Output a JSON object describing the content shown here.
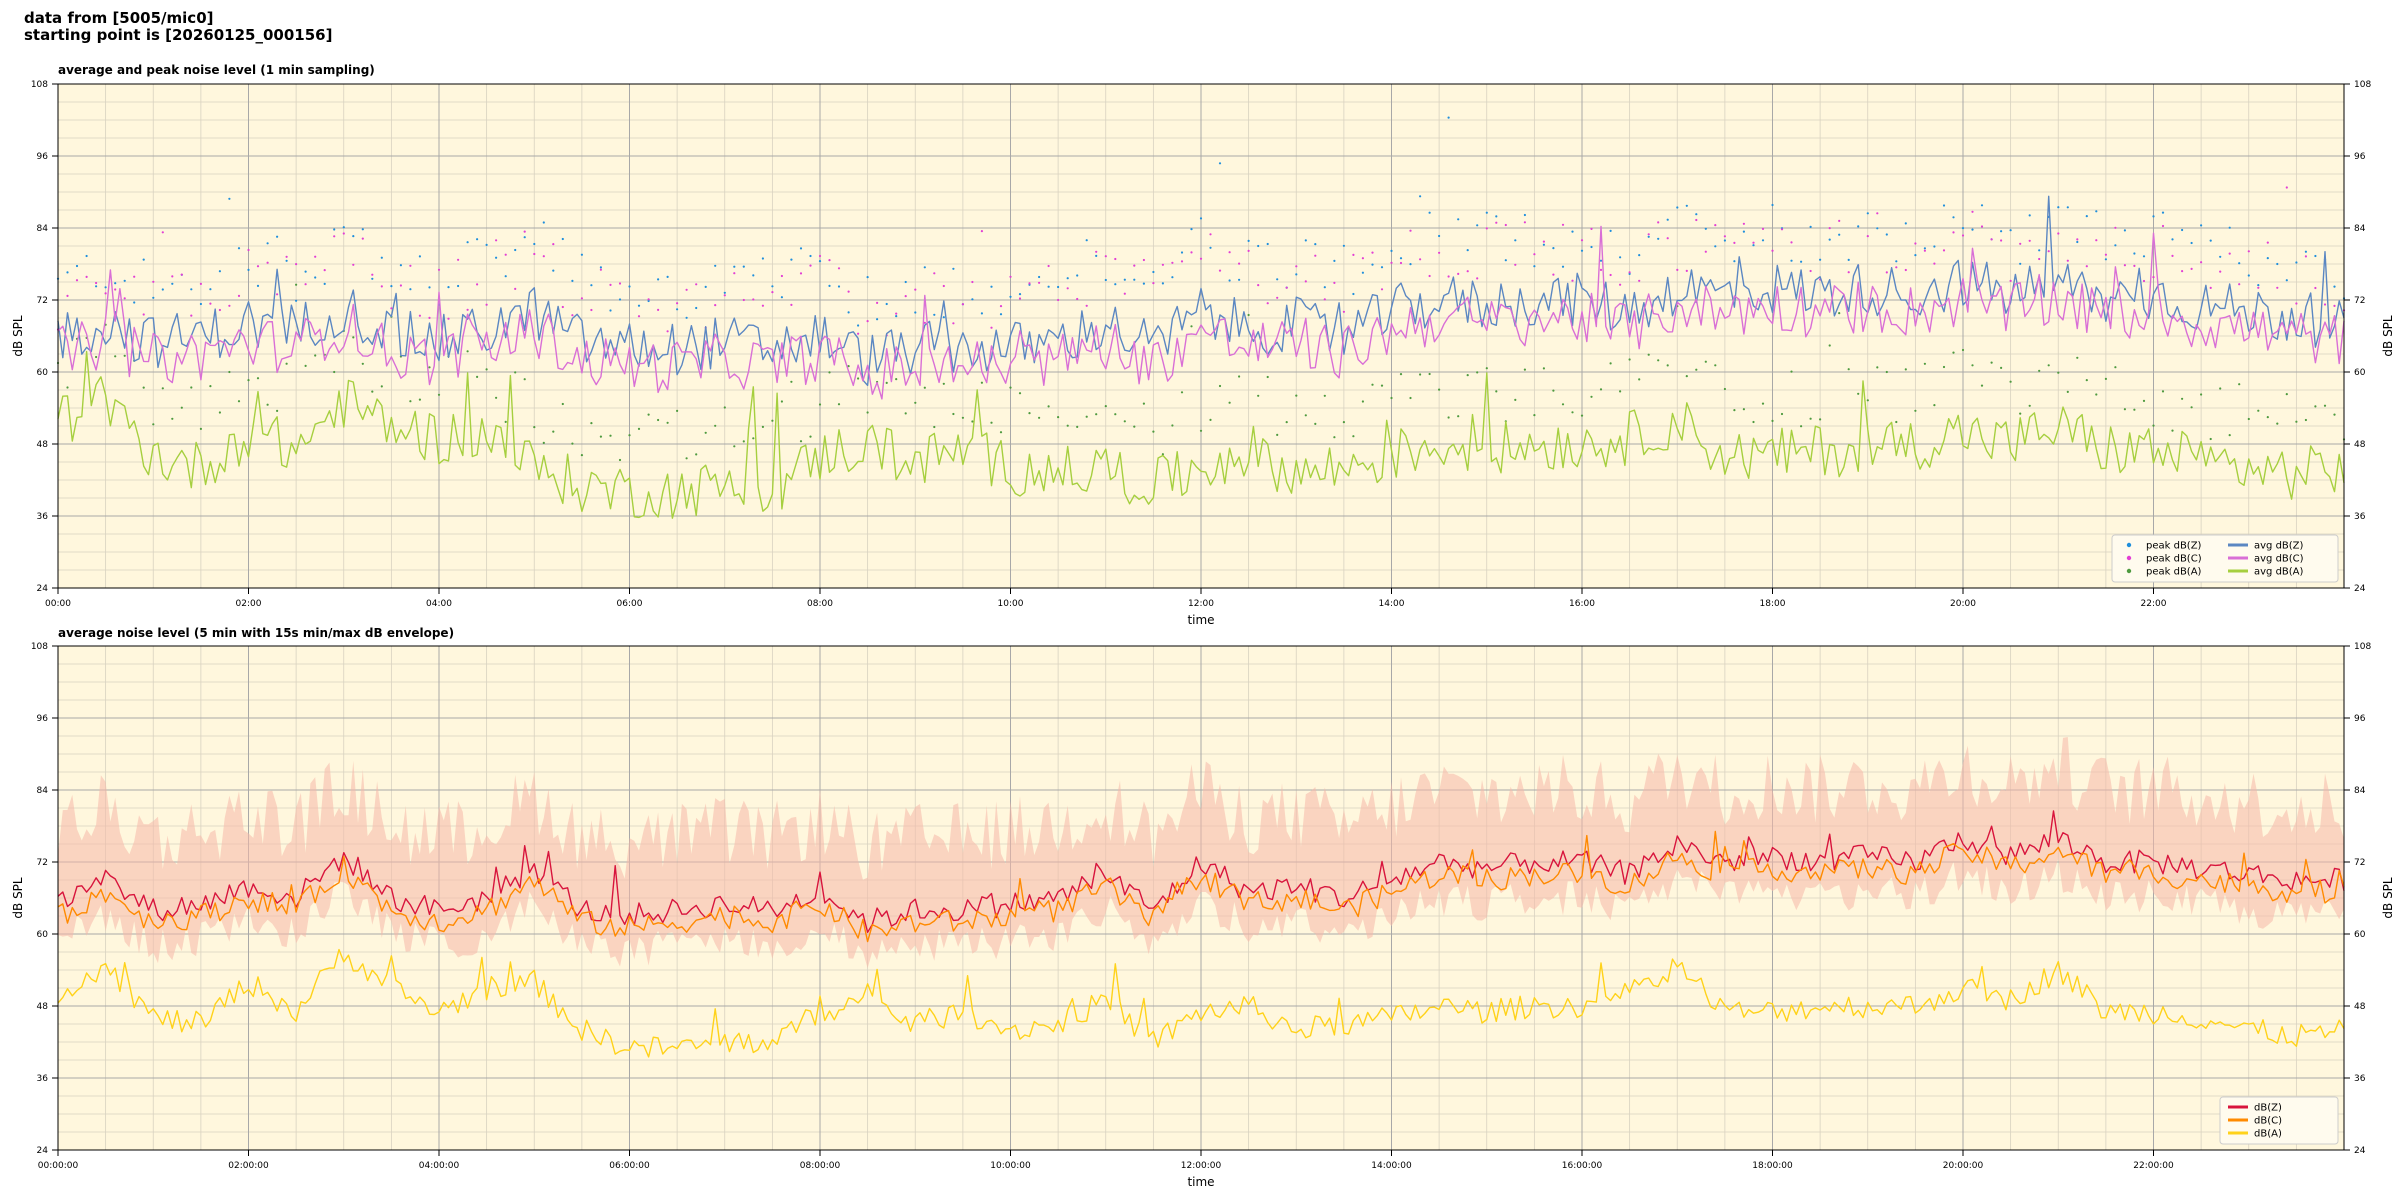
{
  "header": {
    "line1": "data from [5005/mic0]",
    "line2": "starting point is [20260125_000156]"
  },
  "colors": {
    "background": "#fff7dd",
    "grid_major": "#a8a8a8",
    "grid_minor": "#d8d2c0"
  },
  "chart_data": [
    {
      "type": "line",
      "title": "average and peak noise level (1 min sampling)",
      "xlabel": "time",
      "ylabel": "dB SPL",
      "ylim": [
        24,
        108
      ],
      "yticks": [
        "24",
        "36",
        "48",
        "60",
        "72",
        "84",
        "96",
        "108"
      ],
      "xlim_hours": [
        0,
        24
      ],
      "xticks": [
        "00:00",
        "02:00",
        "04:00",
        "06:00",
        "08:00",
        "10:00",
        "12:00",
        "14:00",
        "16:00",
        "18:00",
        "20:00",
        "22:00"
      ],
      "grid": true,
      "legend_position": "bottom-right",
      "legend_columns": 2,
      "hours": [
        0,
        0.5,
        1,
        1.5,
        2,
        2.5,
        3,
        3.5,
        4,
        4.5,
        5,
        5.5,
        6,
        6.5,
        7,
        7.5,
        8,
        8.5,
        9,
        9.5,
        10,
        10.5,
        11,
        11.5,
        12,
        12.5,
        13,
        13.5,
        14,
        14.5,
        15,
        15.5,
        16,
        16.5,
        17,
        17.5,
        18,
        18.5,
        19,
        19.5,
        20,
        20.5,
        21,
        21.5,
        22,
        22.5,
        23,
        23.5,
        24
      ],
      "series": [
        {
          "name": "avg dB(Z)",
          "kind": "line",
          "color": "#5b87c2",
          "values": [
            66,
            68,
            65,
            66,
            68,
            67,
            71,
            66,
            65,
            67,
            70,
            65,
            64,
            64,
            65,
            64,
            66,
            62,
            64,
            64,
            64,
            65,
            68,
            64,
            70,
            67,
            68,
            66,
            70,
            72,
            71,
            72,
            72,
            70,
            74,
            73,
            74,
            73,
            74,
            73,
            75,
            73,
            75,
            72,
            73,
            71,
            70,
            69,
            68
          ]
        },
        {
          "name": "avg dB(C)",
          "kind": "line",
          "color": "#d96fd6",
          "values": [
            63,
            65,
            62,
            63,
            65,
            64,
            68,
            63,
            62,
            64,
            67,
            62,
            61,
            61,
            62,
            61,
            63,
            59,
            61,
            61,
            61,
            62,
            65,
            61,
            67,
            64,
            65,
            63,
            67,
            69,
            68,
            69,
            69,
            67,
            71,
            70,
            71,
            70,
            71,
            70,
            72,
            70,
            72,
            69,
            70,
            68,
            67,
            66,
            65
          ]
        },
        {
          "name": "avg dB(A)",
          "kind": "line",
          "color": "#a6cf3f",
          "values": [
            52,
            55,
            46,
            44,
            50,
            47,
            55,
            51,
            49,
            50,
            44,
            41,
            40,
            40,
            41,
            40,
            46,
            48,
            45,
            47,
            44,
            43,
            44,
            41,
            44,
            47,
            43,
            44,
            46,
            48,
            47,
            48,
            48,
            49,
            52,
            46,
            46,
            47,
            47,
            48,
            50,
            48,
            51,
            47,
            47,
            45,
            44,
            43,
            44
          ]
        },
        {
          "name": "peak dB(Z)",
          "kind": "scatter",
          "color": "#1f8fdc",
          "values": [
            74,
            78,
            73,
            75,
            80,
            76,
            82,
            76,
            75,
            78,
            82,
            75,
            74,
            73,
            75,
            74,
            77,
            71,
            74,
            74,
            74,
            76,
            79,
            75,
            83,
            78,
            79,
            77,
            81,
            83,
            82,
            82,
            82,
            80,
            84,
            83,
            84,
            82,
            84,
            82,
            85,
            82,
            85,
            82,
            82,
            80,
            79,
            78,
            77
          ]
        },
        {
          "name": "peak dB(C)",
          "kind": "scatter",
          "color": "#e33fd4",
          "values": [
            72,
            76,
            71,
            73,
            78,
            74,
            80,
            74,
            73,
            76,
            80,
            73,
            72,
            71,
            73,
            72,
            75,
            69,
            72,
            72,
            72,
            74,
            77,
            73,
            81,
            76,
            77,
            75,
            79,
            81,
            80,
            80,
            80,
            78,
            82,
            81,
            82,
            80,
            82,
            80,
            83,
            80,
            83,
            80,
            80,
            78,
            77,
            76,
            75
          ]
        },
        {
          "name": "peak dB(A)",
          "kind": "scatter",
          "color": "#4e9a3f",
          "values": [
            60,
            64,
            55,
            53,
            60,
            56,
            64,
            60,
            58,
            59,
            53,
            50,
            49,
            49,
            50,
            49,
            55,
            57,
            54,
            56,
            53,
            52,
            53,
            50,
            53,
            56,
            52,
            53,
            55,
            57,
            56,
            57,
            57,
            58,
            61,
            55,
            55,
            56,
            56,
            57,
            59,
            57,
            60,
            56,
            56,
            54,
            53,
            52,
            53
          ]
        }
      ]
    },
    {
      "type": "line",
      "title": "average noise level (5 min with 15s min/max dB envelope)",
      "xlabel": "time",
      "ylabel": "dB SPL",
      "ylim": [
        24,
        108
      ],
      "yticks": [
        "24",
        "36",
        "48",
        "60",
        "72",
        "84",
        "96",
        "108"
      ],
      "xlim_hours": [
        0,
        24
      ],
      "xticks": [
        "00:00:00",
        "02:00:00",
        "04:00:00",
        "06:00:00",
        "08:00:00",
        "10:00:00",
        "12:00:00",
        "14:00:00",
        "16:00:00",
        "18:00:00",
        "20:00:00",
        "22:00:00"
      ],
      "grid": true,
      "legend_position": "bottom-right",
      "legend_columns": 1,
      "hours": [
        0,
        0.5,
        1,
        1.5,
        2,
        2.5,
        3,
        3.5,
        4,
        4.5,
        5,
        5.5,
        6,
        6.5,
        7,
        7.5,
        8,
        8.5,
        9,
        9.5,
        10,
        10.5,
        11,
        11.5,
        12,
        12.5,
        13,
        13.5,
        14,
        14.5,
        15,
        15.5,
        16,
        16.5,
        17,
        17.5,
        18,
        18.5,
        19,
        19.5,
        20,
        20.5,
        21,
        21.5,
        22,
        22.5,
        23,
        23.5,
        24
      ],
      "envelope": {
        "color": "#f6b8a8",
        "low_offset": -6,
        "high_offset": 12
      },
      "series": [
        {
          "name": "dB(Z)",
          "kind": "line",
          "color": "#d8143c",
          "values": [
            65,
            69,
            64,
            65,
            68,
            66,
            73,
            66,
            64,
            66,
            71,
            64,
            63,
            64,
            65,
            64,
            67,
            62,
            64,
            64,
            65,
            66,
            70,
            64,
            72,
            67,
            68,
            66,
            69,
            72,
            71,
            72,
            72,
            70,
            75,
            72,
            73,
            72,
            73,
            72,
            76,
            73,
            76,
            72,
            72,
            71,
            70,
            69,
            69
          ]
        },
        {
          "name": "dB(C)",
          "kind": "line",
          "color": "#ff8a00",
          "values": [
            63,
            67,
            62,
            63,
            66,
            64,
            71,
            64,
            62,
            64,
            69,
            62,
            61,
            62,
            63,
            62,
            65,
            60,
            62,
            62,
            63,
            64,
            68,
            62,
            70,
            65,
            66,
            64,
            67,
            70,
            69,
            70,
            70,
            68,
            73,
            70,
            71,
            70,
            71,
            70,
            74,
            71,
            74,
            70,
            70,
            69,
            68,
            67,
            67
          ]
        },
        {
          "name": "dB(A)",
          "kind": "line",
          "color": "#ffd21a",
          "values": [
            50,
            55,
            46,
            45,
            52,
            47,
            57,
            51,
            47,
            51,
            52,
            44,
            41,
            41,
            42,
            42,
            47,
            49,
            45,
            47,
            44,
            45,
            49,
            42,
            47,
            48,
            44,
            45,
            46,
            48,
            47,
            48,
            48,
            50,
            55,
            47,
            47,
            48,
            48,
            48,
            51,
            49,
            54,
            47,
            47,
            46,
            44,
            43,
            44
          ]
        }
      ]
    }
  ]
}
